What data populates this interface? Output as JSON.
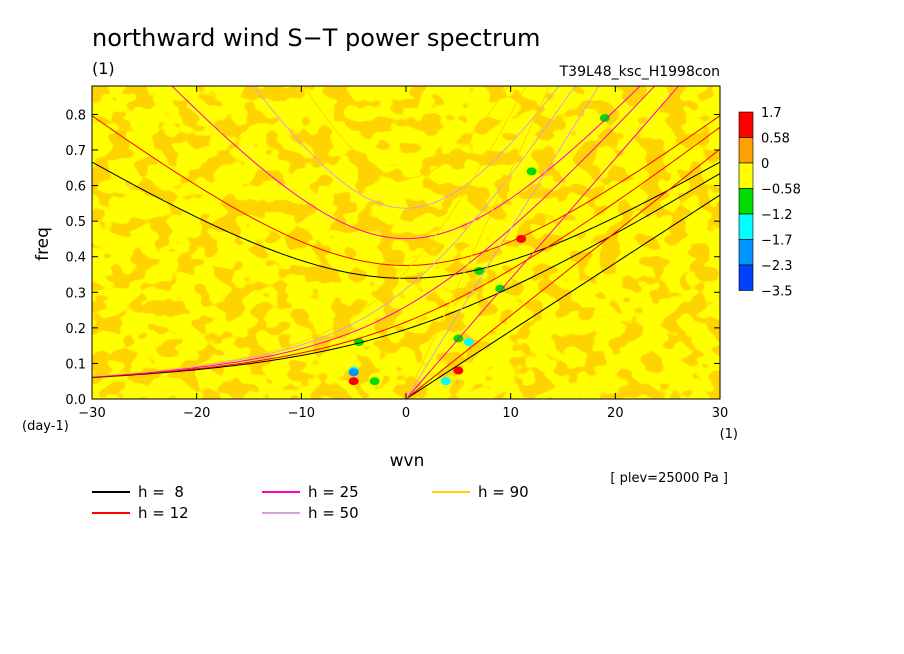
{
  "chart_data": {
    "type": "heatmap",
    "title": "northward wind S−T power spectrum",
    "title_units": "(1)",
    "run_label": "T39L48_ksc_H1998con",
    "xlabel": "wvn",
    "x_units": "(1)",
    "ylabel": "freq",
    "y_units": "(day-1)",
    "level_note": "[ plev=25000 Pa ]",
    "xlim": [
      -30,
      30
    ],
    "ylim": [
      0,
      0.88
    ],
    "x_ticks": [
      -30,
      -20,
      -10,
      0,
      10,
      20,
      30
    ],
    "x_tick_labels": [
      "−30",
      "−20",
      "−10",
      "0",
      "10",
      "20",
      "30"
    ],
    "y_ticks": [
      0.0,
      0.1,
      0.2,
      0.3,
      0.4,
      0.5,
      0.6,
      0.7,
      0.8
    ],
    "y_tick_labels": [
      "0.0",
      "0.1",
      "0.2",
      "0.3",
      "0.4",
      "0.5",
      "0.6",
      "0.7",
      "0.8"
    ],
    "colorbar": {
      "levels": [
        "1.7",
        "0.58",
        "0",
        "−0.58",
        "−1.2",
        "−1.7",
        "−2.3",
        "−3.5"
      ],
      "colors": [
        "#ff0000",
        "#ff9f00",
        "#ffff00",
        "#00dd00",
        "#00ffff",
        "#0096ff",
        "#0040ff"
      ]
    },
    "field": {
      "background_color": "#ffff00",
      "dominant_color": "#ffa500",
      "patches": [
        {
          "x": -5.0,
          "y": 0.08,
          "color": "#00ffff"
        },
        {
          "x": -5.0,
          "y": 0.075,
          "color": "#0096ff"
        },
        {
          "x": -3.0,
          "y": 0.05,
          "color": "#00dd00"
        },
        {
          "x": -5.0,
          "y": 0.05,
          "color": "#ff0000"
        },
        {
          "x": 5.0,
          "y": 0.17,
          "color": "#00dd00"
        },
        {
          "x": 6.0,
          "y": 0.16,
          "color": "#00ffff"
        },
        {
          "x": 3.8,
          "y": 0.05,
          "color": "#00ffff"
        },
        {
          "x": 5.0,
          "y": 0.08,
          "color": "#ff0000"
        },
        {
          "x": 9.0,
          "y": 0.31,
          "color": "#00dd00"
        },
        {
          "x": 11.0,
          "y": 0.45,
          "color": "#ff0000"
        },
        {
          "x": 12.0,
          "y": 0.64,
          "color": "#00dd00"
        },
        {
          "x": 19.0,
          "y": 0.79,
          "color": "#00dd00"
        },
        {
          "x": -4.5,
          "y": 0.16,
          "color": "#00dd00"
        },
        {
          "x": 7.0,
          "y": 0.36,
          "color": "#00dd00"
        }
      ]
    },
    "dispersion_curves": [
      {
        "name": "h =  8",
        "h": 8,
        "color": "#000000"
      },
      {
        "name": "h = 12",
        "h": 12,
        "color": "#ff0000"
      },
      {
        "name": "h = 25",
        "h": 25,
        "color": "#ff00c0"
      },
      {
        "name": "h = 50",
        "h": 50,
        "color": "#d8a0d8"
      },
      {
        "name": "h = 90",
        "h": 90,
        "color": "#ffd700"
      }
    ]
  }
}
